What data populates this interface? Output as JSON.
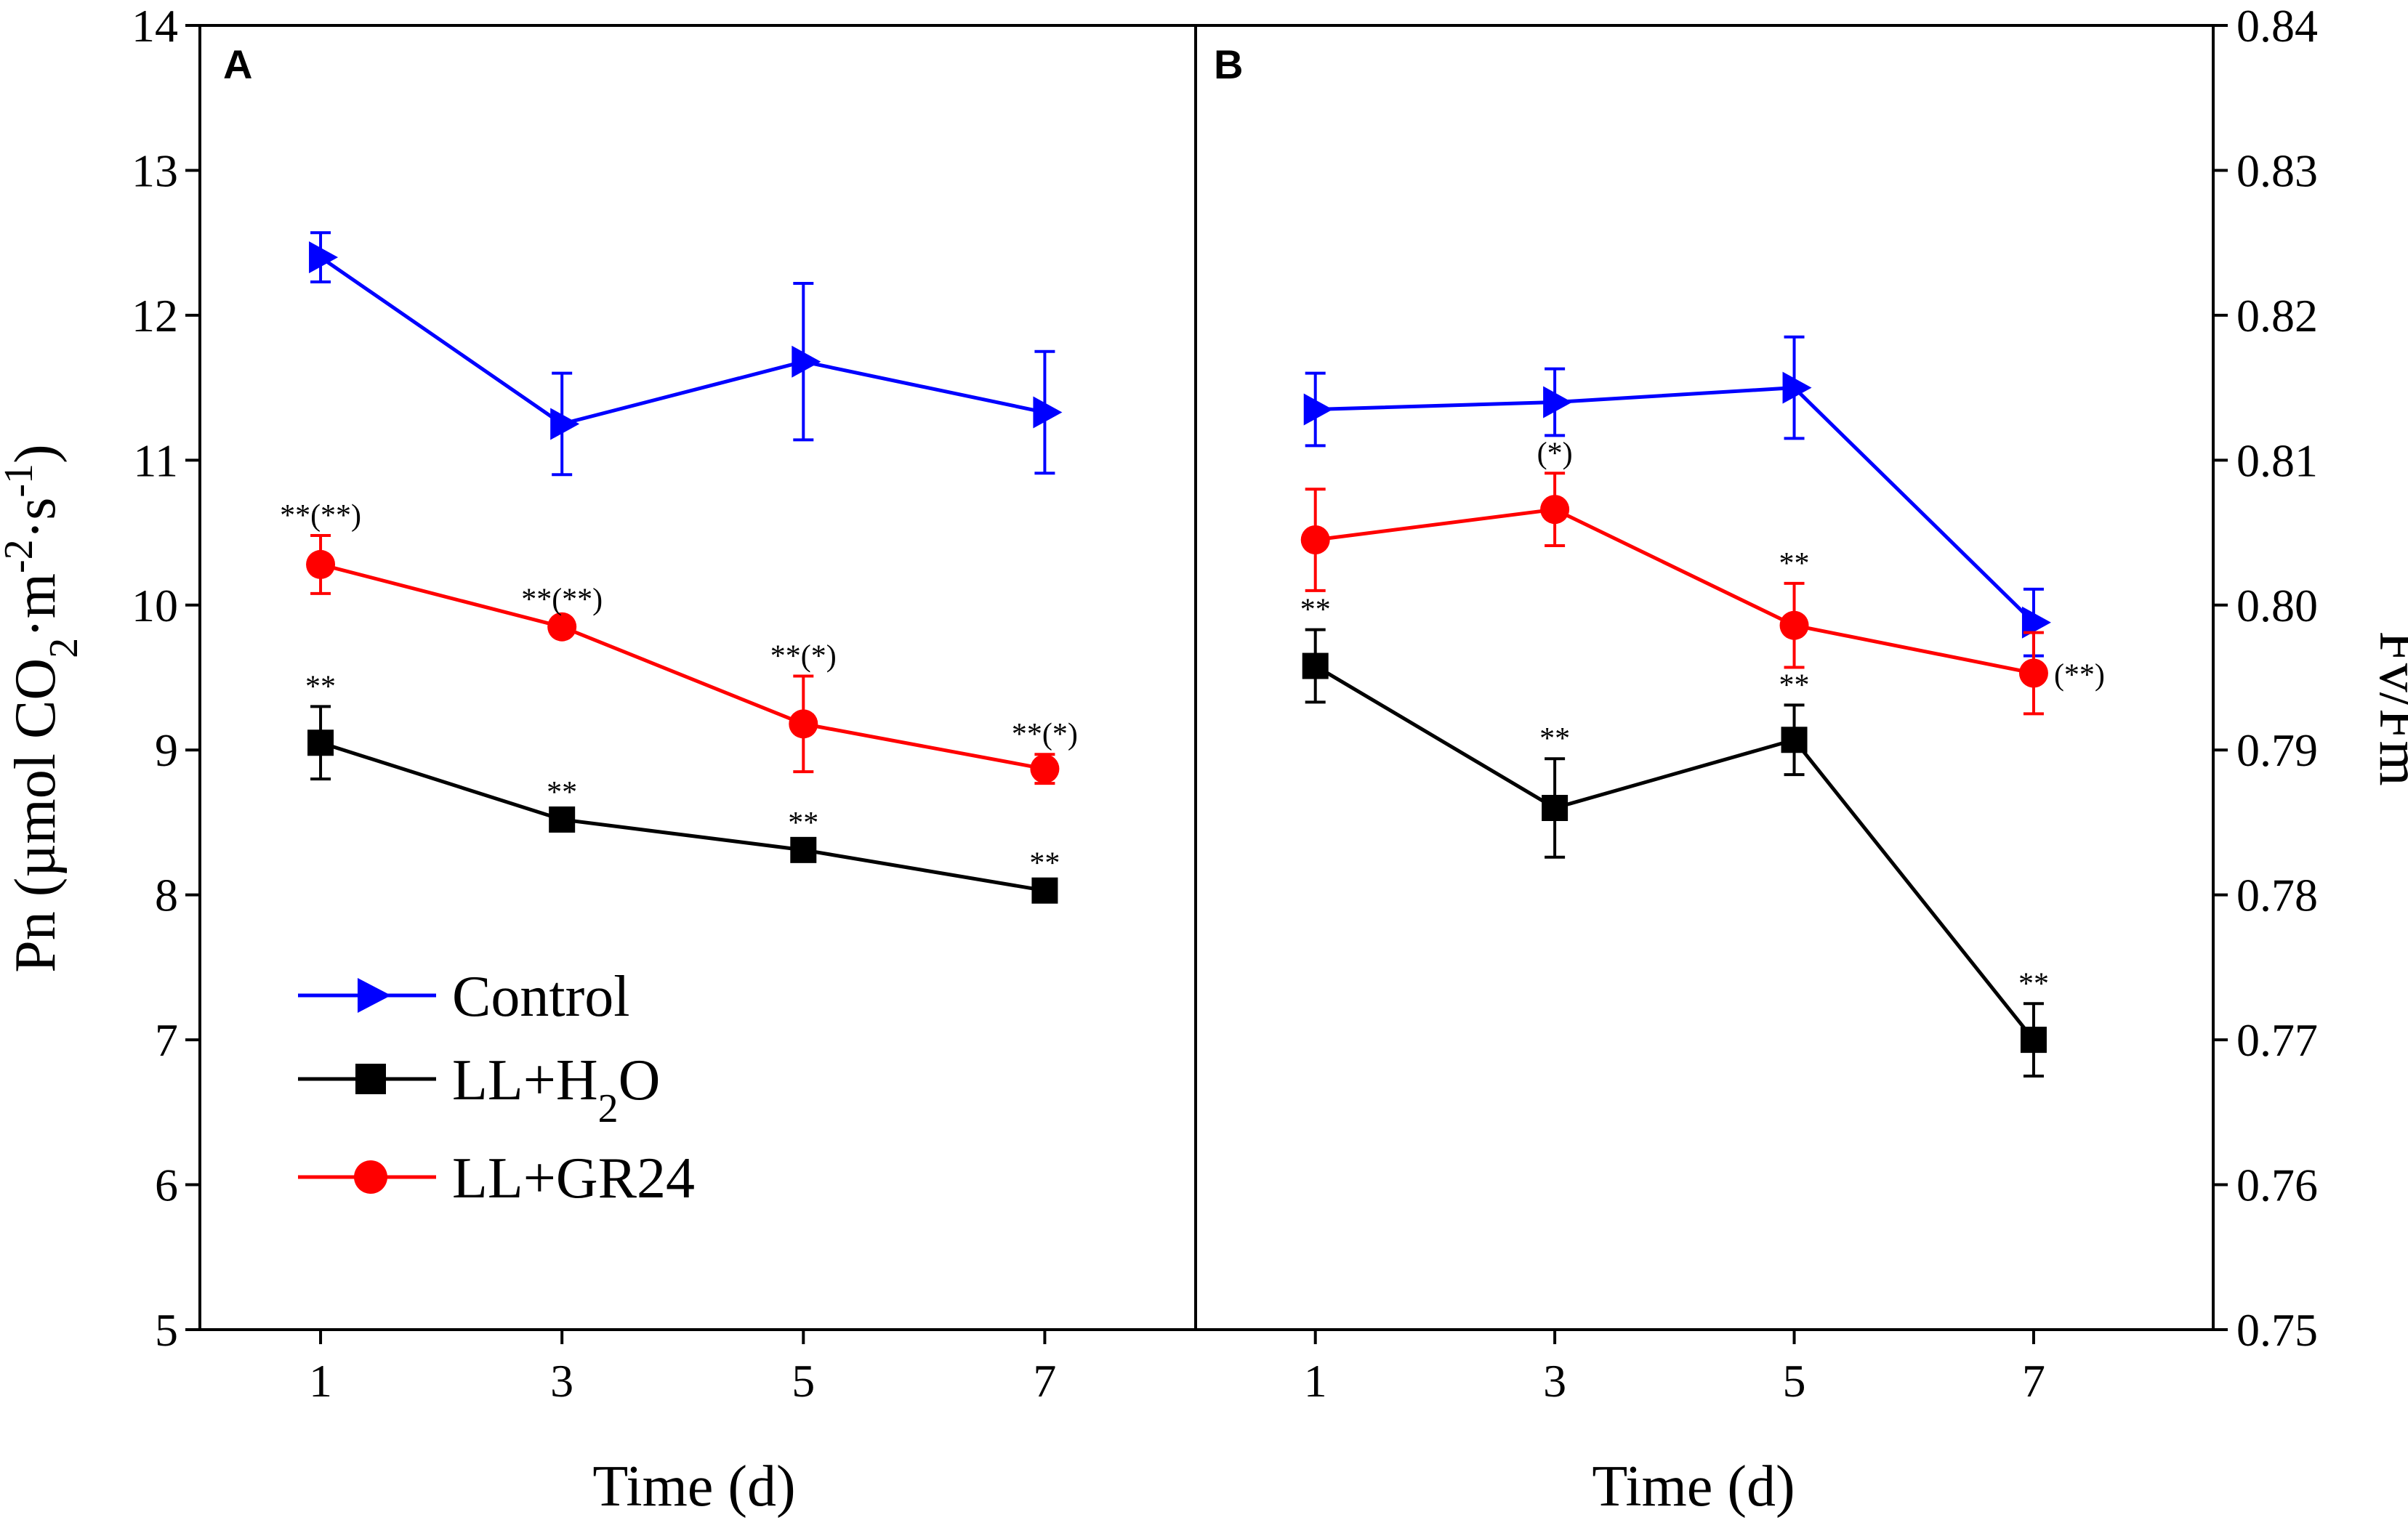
{
  "chart_data": [
    {
      "panel": "A",
      "type": "line",
      "xlabel": "Time (d)",
      "ylabel_prefix": "Pn (µmol CO",
      "ylabel_sub1": "2",
      "ylabel_mid": "·m",
      "ylabel_sup1": "-2",
      "ylabel_mid2": "·s",
      "ylabel_sup2": "-1",
      "ylabel_suffix": ")",
      "x": [
        1,
        3,
        5,
        7
      ],
      "xticks": [
        "1",
        "3",
        "5",
        "7"
      ],
      "ylim": [
        5,
        14
      ],
      "yticks": [
        "5",
        "6",
        "7",
        "8",
        "9",
        "10",
        "11",
        "12",
        "13",
        "14"
      ],
      "series": [
        {
          "name": "Control",
          "color": "#0000ff",
          "marker": "triangle-right",
          "values": [
            12.4,
            11.25,
            11.68,
            11.33
          ],
          "errors": [
            0.17,
            0.35,
            0.54,
            0.42
          ],
          "labels": [
            "",
            "",
            "",
            ""
          ]
        },
        {
          "name": "LL+H2O",
          "color": "#000000",
          "marker": "square",
          "values": [
            9.05,
            8.52,
            8.31,
            8.03
          ],
          "errors": [
            0.25,
            0.05,
            0.05,
            0.05
          ],
          "labels": [
            "**",
            "**",
            "**",
            "**"
          ]
        },
        {
          "name": "LL+GR24",
          "color": "#ff0000",
          "marker": "circle",
          "values": [
            10.28,
            9.85,
            9.18,
            8.87
          ],
          "errors": [
            0.2,
            0.05,
            0.33,
            0.1
          ],
          "labels": [
            "**(**)",
            "**(**)",
            "**(*)",
            "**(*)"
          ]
        }
      ]
    },
    {
      "panel": "B",
      "type": "line",
      "xlabel": "Time (d)",
      "ylabel": "Fv/Fm",
      "x": [
        1,
        3,
        5,
        7
      ],
      "xticks": [
        "1",
        "3",
        "5",
        "7"
      ],
      "ylim": [
        0.75,
        0.84
      ],
      "yticks": [
        "0.75",
        "0.76",
        "0.77",
        "0.78",
        "0.79",
        "0.80",
        "0.81",
        "0.82",
        "0.83",
        "0.84"
      ],
      "series": [
        {
          "name": "Control",
          "color": "#0000ff",
          "marker": "triangle-right",
          "values": [
            0.8135,
            0.814,
            0.815,
            0.7988
          ],
          "errors": [
            0.0025,
            0.0023,
            0.0035,
            0.0023
          ],
          "labels": [
            "",
            "",
            "",
            ""
          ]
        },
        {
          "name": "LL+H2O",
          "color": "#000000",
          "marker": "square",
          "values": [
            0.7958,
            0.786,
            0.7907,
            0.77
          ],
          "errors": [
            0.0025,
            0.0034,
            0.0024,
            0.0025
          ],
          "labels": [
            "**",
            "**",
            "**",
            "**"
          ]
        },
        {
          "name": "LL+GR24",
          "color": "#ff0000",
          "marker": "circle",
          "values": [
            0.8045,
            0.8066,
            0.7986,
            0.7953
          ],
          "errors": [
            0.0035,
            0.0025,
            0.0029,
            0.0028
          ],
          "labels": [
            "",
            "(*)",
            "**",
            "(**)"
          ]
        }
      ]
    }
  ],
  "legend": {
    "items": [
      {
        "name": "Control",
        "color": "#0000ff",
        "marker": "triangle-right"
      },
      {
        "name": "LL+H",
        "sub": "2",
        "suffix": "O",
        "color": "#000000",
        "marker": "square"
      },
      {
        "name": "LL+GR24",
        "color": "#ff0000",
        "marker": "circle"
      }
    ]
  }
}
